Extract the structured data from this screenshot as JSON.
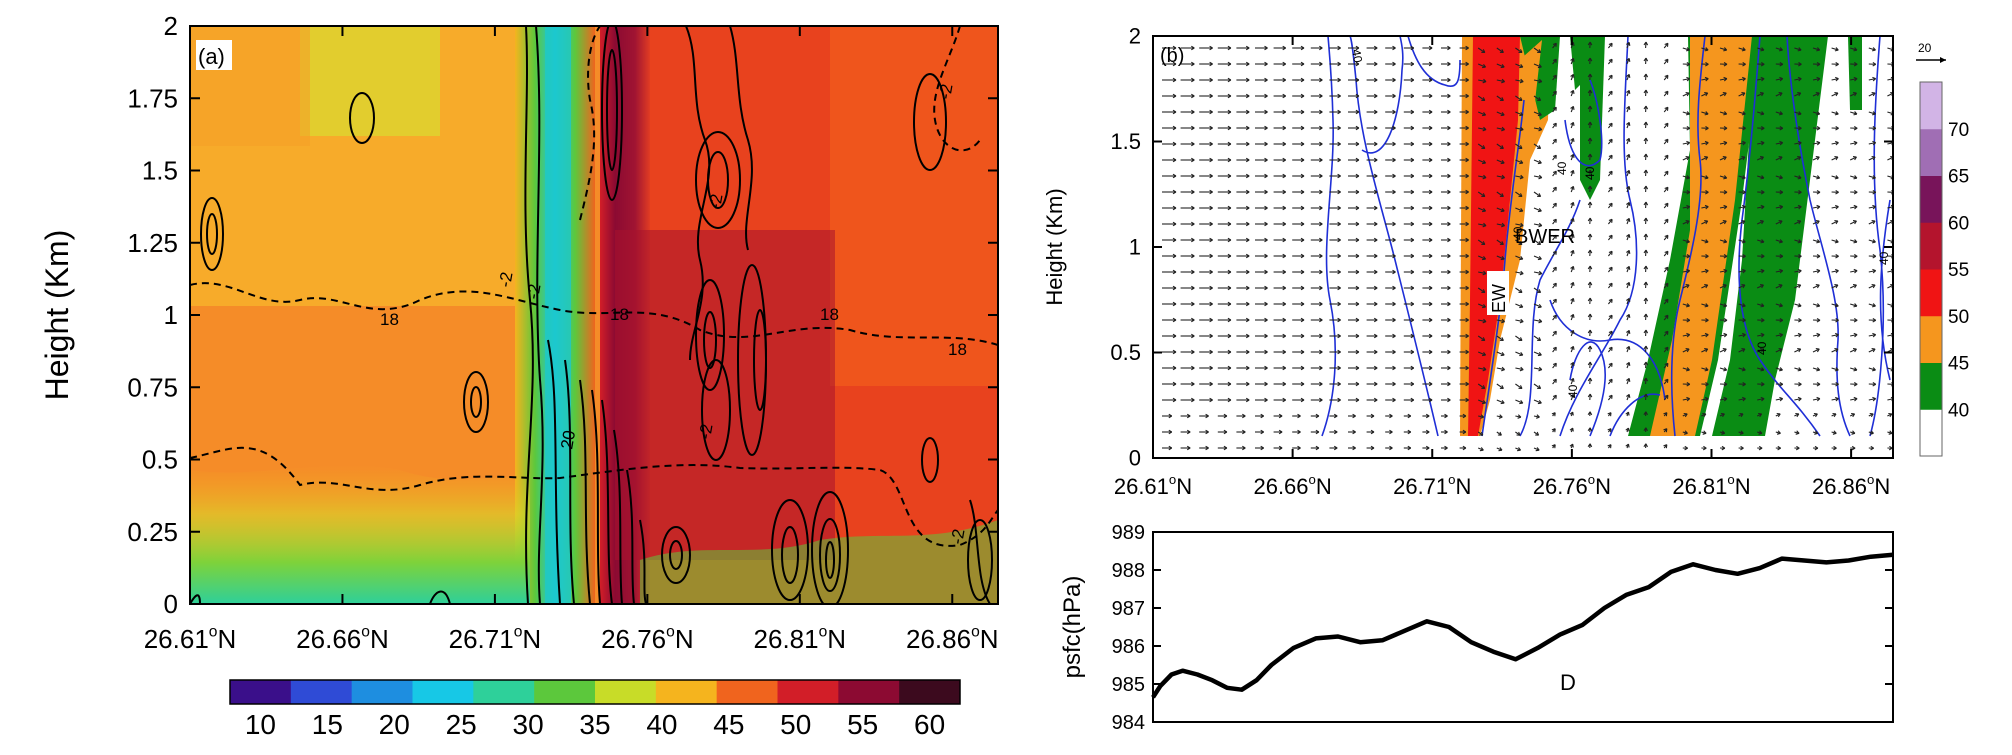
{
  "chart_data": [
    {
      "type": "heatmap",
      "panel_label": "(a)",
      "ylabel": "Height (Km)",
      "xlim": [
        26.61,
        26.875
      ],
      "ylim": [
        0,
        2
      ],
      "x_ticks": [
        26.61,
        26.66,
        26.71,
        26.76,
        26.81,
        26.86
      ],
      "x_tick_labels": [
        "26.61",
        "26.66",
        "26.71",
        "26.76",
        "26.81",
        "26.86"
      ],
      "x_tick_suffix": "N",
      "y_ticks": [
        0,
        0.25,
        0.5,
        0.75,
        1,
        1.25,
        1.5,
        1.75,
        2
      ],
      "y_tick_labels": [
        "0",
        "0.25",
        "0.5",
        "0.75",
        "1",
        "1.25",
        "1.5",
        "1.75",
        "2"
      ],
      "colorbar": {
        "ticks": [
          10,
          15,
          20,
          25,
          30,
          35,
          40,
          45,
          50,
          55,
          60
        ],
        "labels": [
          "10",
          "15",
          "20",
          "25",
          "30",
          "35",
          "40",
          "45",
          "50",
          "55",
          "60"
        ],
        "colors": [
          "#3a0f8a",
          "#2f4bd6",
          "#1e8ee0",
          "#17c8e6",
          "#2ed09a",
          "#5cc83c",
          "#c8dc28",
          "#f5b41e",
          "#f0641e",
          "#d21e28",
          "#8c0a32",
          "#3c0a1e"
        ]
      },
      "contour_labels": [
        "18",
        "18",
        "18",
        "18",
        "-2",
        "-2",
        "-2",
        "-2",
        "-2",
        "-2",
        "20"
      ]
    },
    {
      "type": "heatmap",
      "panel_label": "(b)",
      "ylabel": "Height (Km)",
      "xlim": [
        26.61,
        26.875
      ],
      "ylim": [
        0,
        2
      ],
      "x_ticks": [
        26.61,
        26.66,
        26.71,
        26.76,
        26.81,
        26.86
      ],
      "x_tick_labels": [
        "26.61",
        "26.66",
        "26.71",
        "26.76",
        "26.81",
        "26.86"
      ],
      "x_tick_suffix": "N",
      "y_ticks": [
        0,
        0.5,
        1,
        1.5,
        2
      ],
      "y_tick_labels": [
        "0",
        "0.5",
        "1",
        "1.5",
        "2"
      ],
      "annotations": [
        "BWER",
        "EW"
      ],
      "vector_reference": "20",
      "contour_labels": [
        "40",
        "40",
        "40",
        "40",
        "40",
        "40",
        "40"
      ],
      "colorbar": {
        "ticks": [
          40,
          45,
          50,
          55,
          60,
          65,
          70
        ],
        "labels": [
          "40",
          "45",
          "50",
          "55",
          "60",
          "65",
          "70"
        ],
        "colors": [
          "#ffffff",
          "#0a8c14",
          "#f5961e",
          "#f01414",
          "#b4142d",
          "#78145a",
          "#a06eb4",
          "#d2b4e6"
        ]
      }
    },
    {
      "type": "line",
      "ylabel": "psfc(hPa)",
      "ylim": [
        984,
        989
      ],
      "y_ticks": [
        984,
        985,
        986,
        987,
        988,
        989
      ],
      "y_tick_labels": [
        "984",
        "985",
        "986",
        "987",
        "988",
        "989"
      ],
      "annotation": "D",
      "x": [
        0,
        0.01,
        0.025,
        0.04,
        0.06,
        0.08,
        0.1,
        0.12,
        0.14,
        0.16,
        0.19,
        0.22,
        0.25,
        0.28,
        0.31,
        0.34,
        0.37,
        0.4,
        0.43,
        0.46,
        0.49,
        0.52,
        0.55,
        0.58,
        0.61,
        0.64,
        0.67,
        0.7,
        0.73,
        0.76,
        0.79,
        0.82,
        0.85,
        0.88,
        0.91,
        0.94,
        0.97,
        1.0
      ],
      "series": [
        {
          "values": [
            984.65,
            984.95,
            985.25,
            985.35,
            985.25,
            985.1,
            984.9,
            984.85,
            985.1,
            985.5,
            985.95,
            986.2,
            986.25,
            986.1,
            986.15,
            986.4,
            986.65,
            986.5,
            986.1,
            985.85,
            985.65,
            985.95,
            986.3,
            986.55,
            987.0,
            987.35,
            987.55,
            987.95,
            988.15,
            988.0,
            987.9,
            988.05,
            988.3,
            988.25,
            988.2,
            988.25,
            988.35,
            988.4
          ]
        }
      ]
    }
  ]
}
